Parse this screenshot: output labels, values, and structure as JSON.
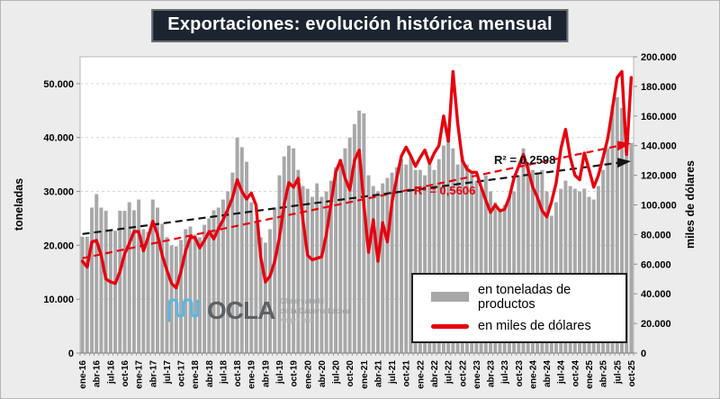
{
  "title": "Exportaciones: evolución histórica mensual",
  "left_axis": {
    "title": "toneladas"
  },
  "right_axis": {
    "title": "miles de dólares"
  },
  "legend": {
    "toneladas": "en toneladas de productos",
    "dolares": "en miles de dólares"
  },
  "annotations": {
    "r2_toneladas": "R² = 0,2598",
    "r2_dolares": "R² = 0,5606"
  },
  "watermark": {
    "brand": "OCLA",
    "line1": "Observatorio",
    "line2": "de la Cadena Láctea",
    "line3": "Argentina"
  },
  "colors": {
    "bar": "#a8a8a8",
    "line": "#e7000e",
    "trend_toneladas": "#141414",
    "trend_dolares": "#e7000e",
    "grid": "#d6d6d6",
    "axis": "#8c8c8c",
    "plot_bg": "#ffffff"
  },
  "chart_data": {
    "type": "bar+line combo, dual axis",
    "x_tick_every": 3,
    "left_axis": {
      "label": "toneladas",
      "max": 55000,
      "tick_values": [
        0,
        10000,
        20000,
        30000,
        40000,
        50000
      ],
      "tick_labels": [
        "0",
        "10.000",
        "20.000",
        "30.000",
        "40.000",
        "50.000"
      ]
    },
    "right_axis": {
      "label": "miles de dólares",
      "max": 200000,
      "tick_values": [
        0,
        20000,
        40000,
        60000,
        80000,
        100000,
        120000,
        140000,
        160000,
        180000,
        200000
      ],
      "tick_labels": [
        "0",
        "20.000",
        "40.000",
        "60.000",
        "80.000",
        "100.000",
        "120.000",
        "140.000",
        "160.000",
        "180.000",
        "200.000"
      ]
    },
    "categories": [
      "ene-16",
      "feb-16",
      "mar-16",
      "abr-16",
      "may-16",
      "jun-16",
      "jul-16",
      "ago-16",
      "sep-16",
      "oct-16",
      "nov-16",
      "dic-16",
      "ene-17",
      "feb-17",
      "mar-17",
      "abr-17",
      "may-17",
      "jun-17",
      "jul-17",
      "ago-17",
      "sep-17",
      "oct-17",
      "nov-17",
      "dic-17",
      "ene-18",
      "feb-18",
      "mar-18",
      "abr-18",
      "may-18",
      "jun-18",
      "jul-18",
      "ago-18",
      "sep-18",
      "oct-18",
      "nov-18",
      "dic-18",
      "ene-19",
      "feb-19",
      "mar-19",
      "abr-19",
      "may-19",
      "jun-19",
      "jul-19",
      "ago-19",
      "sep-19",
      "oct-19",
      "nov-19",
      "dic-19",
      "ene-20",
      "feb-20",
      "mar-20",
      "abr-20",
      "may-20",
      "jun-20",
      "jul-20",
      "ago-20",
      "sep-20",
      "oct-20",
      "nov-20",
      "dic-20",
      "ene-21",
      "feb-21",
      "mar-21",
      "abr-21",
      "may-21",
      "jun-21",
      "jul-21",
      "ago-21",
      "sep-21",
      "oct-21",
      "nov-21",
      "dic-21",
      "ene-22",
      "feb-22",
      "mar-22",
      "abr-22",
      "may-22",
      "jun-22",
      "jul-22",
      "ago-22",
      "sep-22",
      "oct-22",
      "nov-22",
      "dic-22",
      "ene-23",
      "feb-23",
      "mar-23",
      "abr-23",
      "may-23",
      "jun-23",
      "jul-23",
      "ago-23",
      "sep-23",
      "oct-23",
      "nov-23",
      "dic-23",
      "ene-24",
      "feb-24",
      "mar-24",
      "abr-24",
      "may-24",
      "jun-24",
      "jul-24",
      "ago-24",
      "sep-24",
      "oct-24",
      "nov-24",
      "dic-24",
      "ene-25",
      "feb-25",
      "mar-25",
      "abr-25",
      "may-25",
      "jun-25",
      "jul-25",
      "ago-25",
      "sep-25",
      "oct-25"
    ],
    "series": [
      {
        "name": "en toneladas de productos",
        "type": "bar",
        "axis": "left",
        "values": [
          21600,
          21600,
          27000,
          29500,
          27000,
          26400,
          22700,
          22700,
          26400,
          26400,
          28000,
          26500,
          28500,
          23000,
          22500,
          28500,
          27000,
          24000,
          21500,
          20000,
          19800,
          21000,
          23000,
          23500,
          22000,
          21500,
          23800,
          25000,
          26500,
          27000,
          28500,
          30000,
          33500,
          40000,
          38200,
          35500,
          28000,
          24500,
          21500,
          20500,
          23000,
          27000,
          33000,
          36500,
          38500,
          38000,
          34000,
          31000,
          30500,
          29000,
          31500,
          29000,
          30000,
          32000,
          34500,
          36000,
          38000,
          40000,
          42500,
          45000,
          44500,
          33000,
          31000,
          30000,
          31500,
          32500,
          33500,
          34500,
          36000,
          35000,
          36500,
          34000,
          34000,
          33000,
          35500,
          34000,
          36000,
          38500,
          41500,
          38000,
          35000,
          36500,
          35000,
          33500,
          32000,
          30500,
          33000,
          30000,
          28000,
          26500,
          27500,
          29000,
          30000,
          33000,
          38000,
          35000,
          34000,
          33500,
          34000,
          30000,
          25500,
          28000,
          30500,
          32000,
          31000,
          30500,
          30000,
          30500,
          29000,
          28500,
          31000,
          34000,
          38000,
          46000,
          47500,
          45500,
          38000,
          39000
        ]
      },
      {
        "name": "en miles de dólares",
        "type": "line",
        "axis": "right",
        "values": [
          62000,
          58000,
          75000,
          76000,
          66000,
          50000,
          48000,
          47000,
          55000,
          67000,
          74000,
          82000,
          82000,
          69000,
          78000,
          89000,
          80000,
          66000,
          56000,
          47000,
          44000,
          55000,
          69000,
          78000,
          78000,
          71000,
          76000,
          82000,
          77000,
          84000,
          90000,
          97000,
          105000,
          117000,
          109000,
          104000,
          108000,
          100000,
          65000,
          48000,
          52000,
          62000,
          78000,
          100000,
          115000,
          112000,
          118000,
          90000,
          66000,
          63000,
          64000,
          65000,
          80000,
          101000,
          122000,
          130000,
          118000,
          110000,
          130000,
          137000,
          100000,
          68000,
          90000,
          62000,
          88000,
          75000,
          102000,
          118000,
          133000,
          139000,
          133000,
          126000,
          132000,
          137000,
          128000,
          135000,
          140000,
          160000,
          143000,
          190000,
          155000,
          130000,
          124000,
          122000,
          122000,
          112000,
          103000,
          95000,
          100000,
          96000,
          97000,
          105000,
          118000,
          126000,
          134000,
          124000,
          112000,
          105000,
          96000,
          92000,
          102000,
          115000,
          138000,
          151000,
          132000,
          120000,
          117000,
          135000,
          124000,
          112000,
          120000,
          132000,
          145000,
          165000,
          186000,
          190000,
          134000,
          186000
        ]
      }
    ],
    "trendlines": [
      {
        "series": "en toneladas de productos",
        "axis": "left",
        "start_value": 22100,
        "end_value": 35600,
        "r2": "R² = 0,2598",
        "style": "dashed-arrow",
        "color": "#141414"
      },
      {
        "series": "en miles de dólares",
        "axis": "right",
        "start_value": 64000,
        "end_value": 141500,
        "r2": "R² = 0,5606",
        "style": "dashed-arrow",
        "color": "#e7000e"
      }
    ],
    "grid": "horizontal dashed at left-axis ticks",
    "legend_position": "inside bottom-right"
  }
}
